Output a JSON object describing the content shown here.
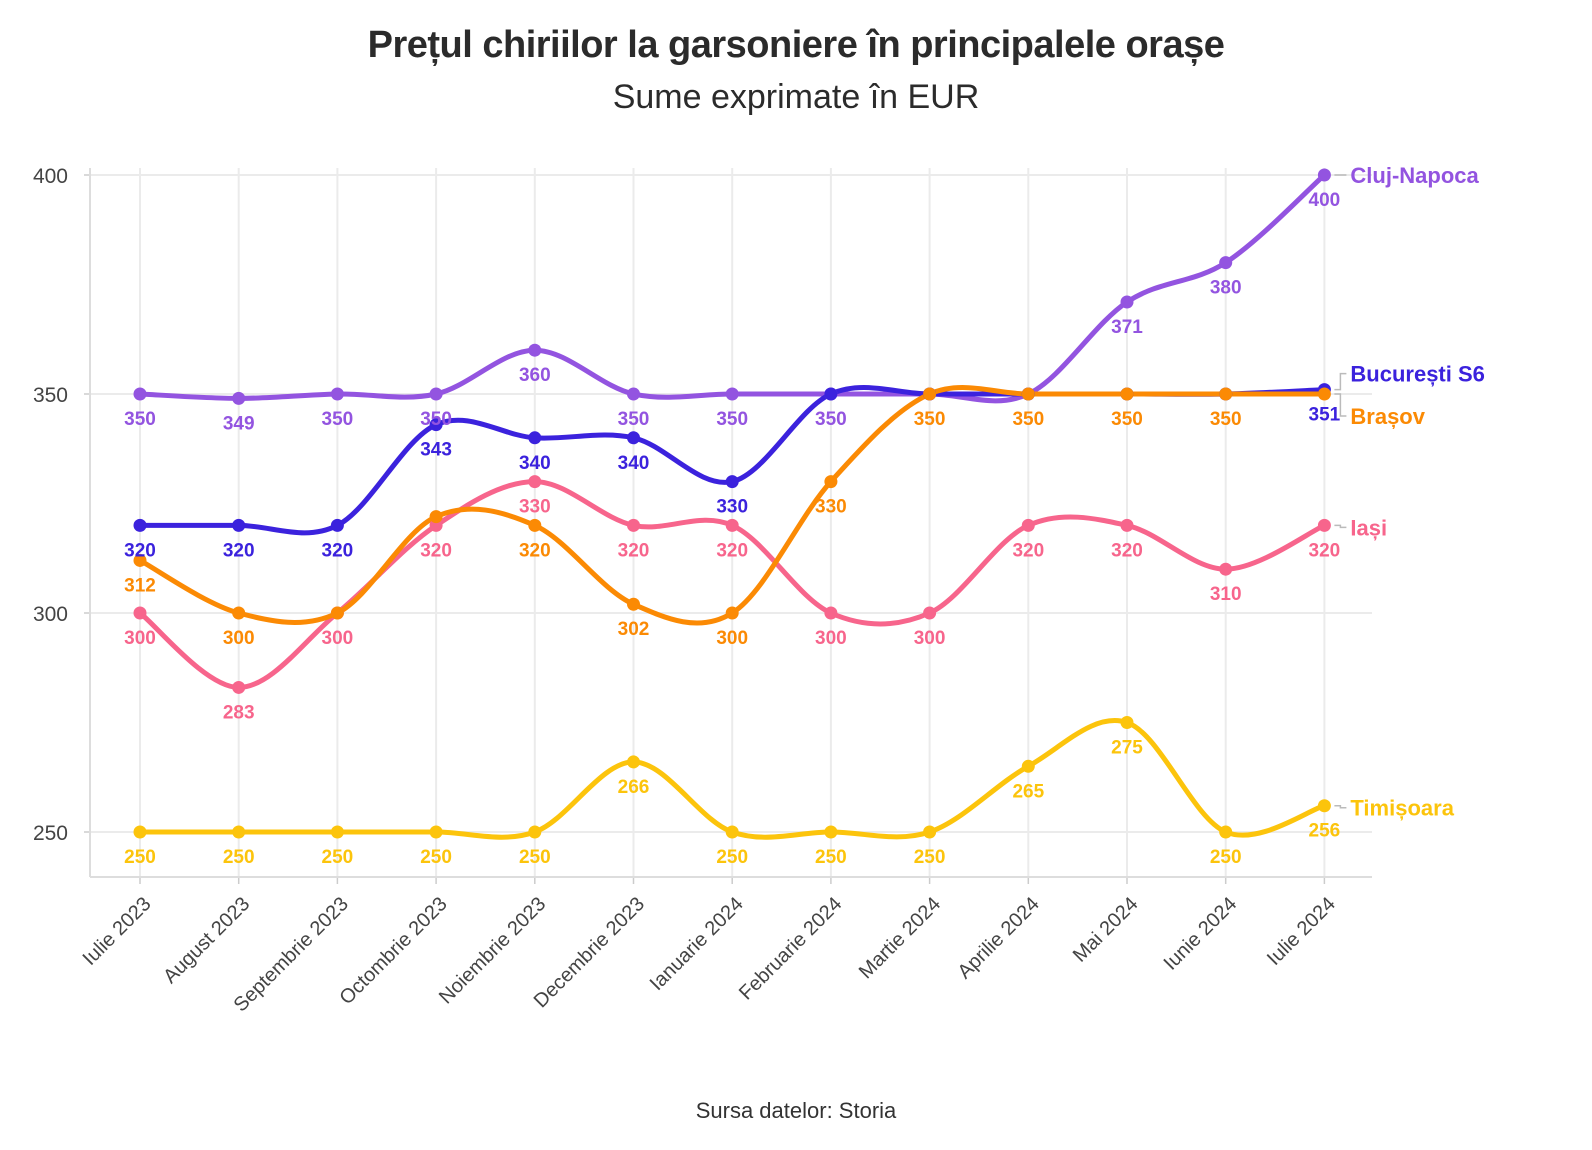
{
  "chart_data": {
    "type": "line",
    "title": "Prețul chiriilor la garsoniere în principalele orașe",
    "subtitle": "Sume exprimate în EUR",
    "caption": "Sursa datelor: Storia",
    "xlabel": "",
    "ylabel": "",
    "ylim": [
      240,
      400
    ],
    "yticks": [
      250,
      300,
      350,
      400
    ],
    "grid": true,
    "legend": "direct labels at line ends (right)",
    "categories": [
      "Iulie 2023",
      "August 2023",
      "Septembrie 2023",
      "Octombrie 2023",
      "Noiembrie 2023",
      "Decembrie 2023",
      "Ianuarie 2024",
      "Februarie 2024",
      "Martie 2024",
      "Aprilie 2024",
      "Mai 2024",
      "Iunie 2024",
      "Iulie 2024"
    ],
    "series": [
      {
        "name": "Cluj-Napoca",
        "color": "#9354e0",
        "values": [
          350,
          349,
          350,
          350,
          360,
          350,
          350,
          350,
          350,
          350,
          371,
          380,
          400
        ],
        "labelPos": [
          "below",
          "below",
          "below",
          "below",
          "below",
          "below",
          "below",
          "below",
          "none",
          "none",
          "below",
          "below",
          "below"
        ]
      },
      {
        "name": "București S6",
        "color": "#3b22dd",
        "values": [
          320,
          320,
          320,
          343,
          340,
          340,
          330,
          350,
          350,
          350,
          350,
          350,
          351
        ],
        "labelPos": [
          "below",
          "below",
          "below",
          "below",
          "below",
          "below",
          "below",
          "none",
          "none",
          "none",
          "none",
          "none",
          "below"
        ]
      },
      {
        "name": "Brașov",
        "color": "#fb8a04",
        "values": [
          312,
          300,
          300,
          322,
          320,
          302,
          300,
          330,
          350,
          350,
          350,
          350,
          350
        ],
        "labelPos": [
          "below",
          "below",
          "none",
          "none",
          "below",
          "below",
          "below",
          "below",
          "below",
          "below",
          "below",
          "below",
          "none"
        ]
      },
      {
        "name": "Iași",
        "color": "#f7658c",
        "values": [
          300,
          283,
          300,
          320,
          330,
          320,
          320,
          300,
          300,
          320,
          320,
          310,
          320
        ],
        "labelPos": [
          "below",
          "below",
          "below",
          "below",
          "below",
          "below",
          "below",
          "below",
          "below",
          "below",
          "below",
          "below",
          "below"
        ]
      },
      {
        "name": "Timișoara",
        "color": "#fcc40c",
        "values": [
          250,
          250,
          250,
          250,
          250,
          266,
          250,
          250,
          250,
          265,
          275,
          250,
          256
        ],
        "labelPos": [
          "below",
          "below",
          "below",
          "below",
          "below",
          "below",
          "below",
          "below",
          "below",
          "below",
          "below",
          "below",
          "below"
        ]
      }
    ]
  }
}
